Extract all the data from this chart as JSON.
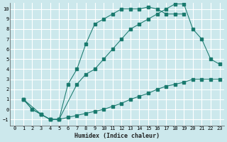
{
  "xlabel": "Humidex (Indice chaleur)",
  "background_color": "#cce8ec",
  "grid_color": "#ffffff",
  "line_color": "#1a7a6e",
  "xlim": [
    -0.5,
    23.5
  ],
  "ylim": [
    -1.6,
    10.6
  ],
  "xticks": [
    0,
    1,
    2,
    3,
    4,
    5,
    6,
    7,
    8,
    9,
    10,
    11,
    12,
    13,
    14,
    15,
    16,
    17,
    18,
    19,
    20,
    21,
    22,
    23
  ],
  "yticks": [
    -1,
    0,
    1,
    2,
    3,
    4,
    5,
    6,
    7,
    8,
    9,
    10
  ],
  "line1_x": [
    1,
    2,
    3,
    4,
    5,
    6,
    7,
    8,
    9,
    10,
    11,
    12,
    13,
    14,
    15,
    16,
    17,
    18,
    19
  ],
  "line1_y": [
    1,
    0,
    -0.5,
    -1,
    -1,
    2.5,
    4,
    6.5,
    8.5,
    9,
    9.5,
    10,
    10,
    10,
    10.2,
    10,
    9.5,
    9.5,
    9.5
  ],
  "line2_x": [
    1,
    2,
    3,
    4,
    5,
    6,
    7,
    8,
    9,
    10,
    11,
    12,
    13,
    14,
    15,
    16,
    17,
    18,
    19,
    20,
    21,
    22,
    23
  ],
  "line2_y": [
    1,
    0,
    -0.5,
    -1,
    -1,
    -0.8,
    -0.6,
    -0.4,
    -0.2,
    0.0,
    0.3,
    0.6,
    1.0,
    1.3,
    1.6,
    2.0,
    2.3,
    2.5,
    2.7,
    3.0,
    3.0,
    3.0,
    3.0
  ],
  "line3_x": [
    1,
    3,
    4,
    5,
    7,
    8,
    9,
    10,
    11,
    12,
    13,
    14,
    15,
    16,
    17,
    18,
    19,
    20,
    21,
    22,
    23
  ],
  "line3_y": [
    1,
    -0.5,
    -1,
    -1,
    2.5,
    3.5,
    4,
    5,
    6,
    7,
    8,
    8.5,
    9,
    9.5,
    10,
    10.5,
    10.5,
    8,
    7,
    5,
    4.5
  ]
}
